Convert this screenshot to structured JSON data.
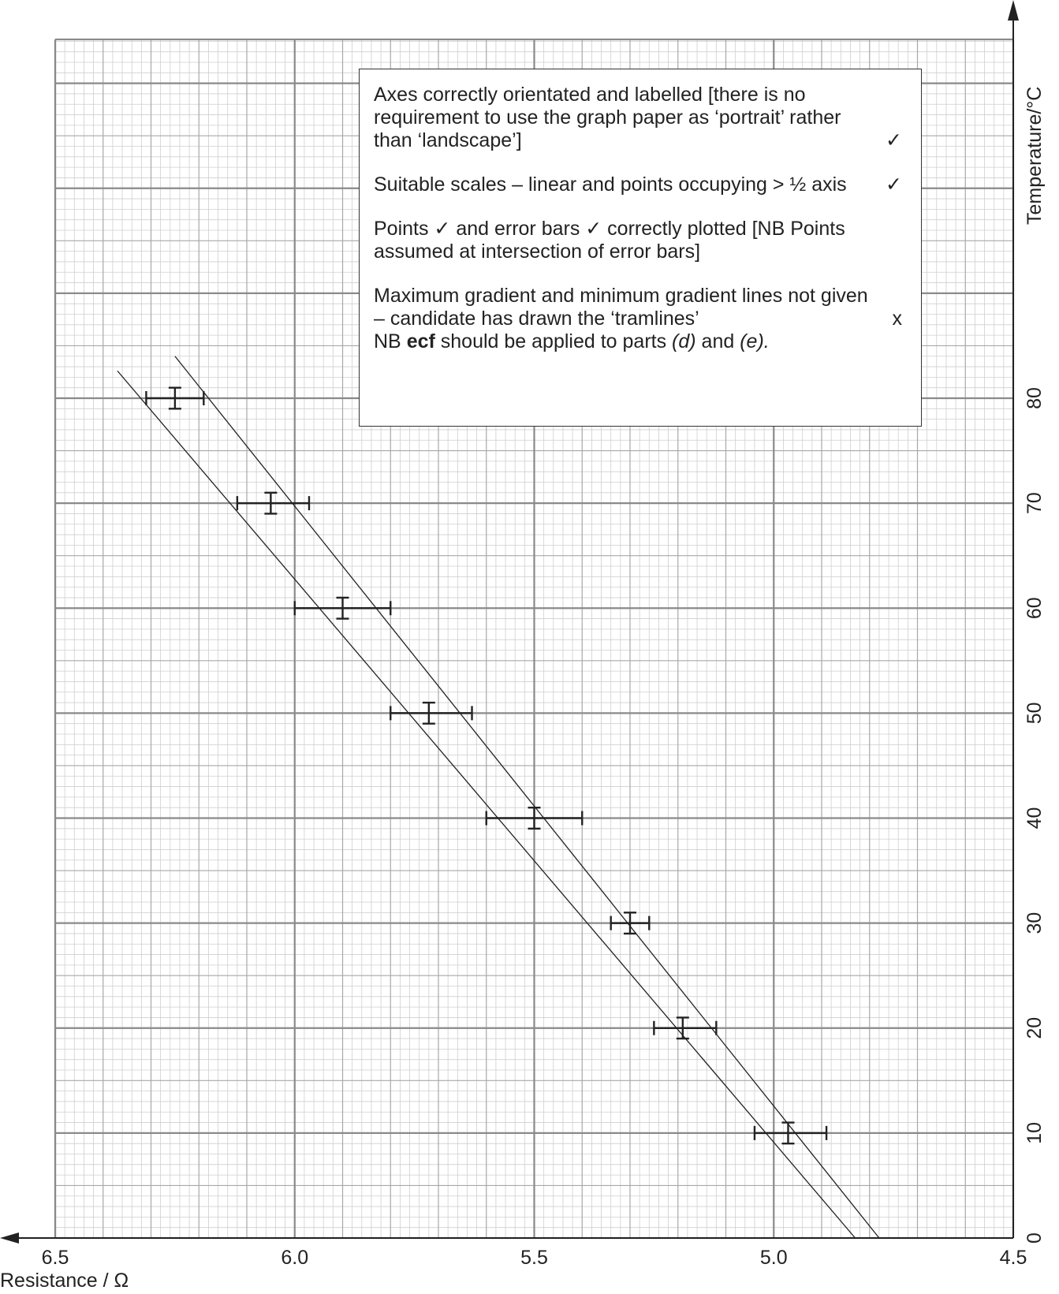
{
  "chart_data": {
    "type": "scatter",
    "title": "",
    "xlabel": "Resistance / Ω",
    "ylabel": "Temperature/°C",
    "xlim": [
      6.5,
      4.5
    ],
    "ylim": [
      0,
      80
    ],
    "x_reversed": true,
    "grid": true,
    "x_ticks": [
      "6.5",
      "6.0",
      "5.5",
      "5.0",
      "4.5"
    ],
    "y_ticks": [
      "0",
      "10",
      "20",
      "30",
      "40",
      "50",
      "60",
      "70",
      "80"
    ],
    "points": [
      {
        "x": 6.25,
        "y": 80,
        "x_err": [
          6.31,
          6.19
        ],
        "y_err": [
          79,
          81
        ]
      },
      {
        "x": 6.05,
        "y": 70,
        "x_err": [
          6.12,
          5.97
        ],
        "y_err": [
          69,
          71
        ]
      },
      {
        "x": 5.9,
        "y": 60,
        "x_err": [
          6.0,
          5.8
        ],
        "y_err": [
          59,
          61
        ]
      },
      {
        "x": 5.72,
        "y": 50,
        "x_err": [
          5.8,
          5.63
        ],
        "y_err": [
          49,
          51
        ]
      },
      {
        "x": 5.5,
        "y": 40,
        "x_err": [
          5.6,
          5.4
        ],
        "y_err": [
          39,
          41
        ]
      },
      {
        "x": 5.3,
        "y": 30,
        "x_err": [
          5.34,
          5.26
        ],
        "y_err": [
          29,
          31
        ]
      },
      {
        "x": 5.19,
        "y": 20,
        "x_err": [
          5.25,
          5.12
        ],
        "y_err": [
          19,
          21
        ]
      },
      {
        "x": 4.97,
        "y": 10,
        "x_err": [
          5.04,
          4.89
        ],
        "y_err": [
          9,
          11
        ]
      }
    ],
    "lines": [
      {
        "x": [
          6.37,
          4.83
        ],
        "y": [
          82.6,
          0
        ]
      },
      {
        "x": [
          6.25,
          4.78
        ],
        "y": [
          84,
          0
        ]
      }
    ]
  },
  "annotation": {
    "notes": [
      {
        "text": "Axes correctly orientated and labelled [there is no requirement to use the graph paper as ‘portrait’ rather than ‘landscape’]",
        "mark": "✓"
      },
      {
        "text": "Suitable scales – linear and points occupying > ½ axis",
        "mark": "✓"
      },
      {
        "text": "Points ✓ and error bars ✓ correctly plotted [NB Points assumed at intersection of error bars]",
        "mark": ""
      },
      {
        "text": "Maximum gradient and minimum gradient lines not given – candidate has drawn the ‘tramlines’",
        "mark": "x"
      }
    ],
    "ecf_prefix": "NB ",
    "ecf_bold": "ecf",
    "ecf_mid": " should be applied to parts ",
    "ecf_part_d": "(d)",
    "ecf_and": " and ",
    "ecf_part_e": "(e)."
  }
}
